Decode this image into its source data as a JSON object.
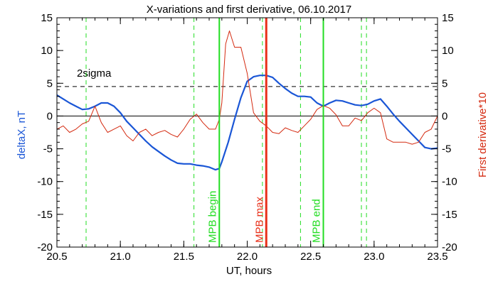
{
  "chart_data": {
    "type": "line",
    "title": "X-variations and first derivative, 06.10.2017",
    "xlabel": "UT, hours",
    "ylabel_left": "deltaX, nT",
    "ylabel_right": "First derivative*10",
    "xlim": [
      20.5,
      23.5
    ],
    "ylim": [
      -20,
      15
    ],
    "x_ticks": [
      "20.5",
      "21.0",
      "21.5",
      "22.0",
      "22.5",
      "23.0",
      "23.5"
    ],
    "x_tick_values": [
      20.5,
      21.0,
      21.5,
      22.0,
      22.5,
      23.0,
      23.5
    ],
    "y_ticks": [
      "15",
      "10",
      "5",
      "0",
      "-5",
      "-10",
      "-15",
      "-20"
    ],
    "y_tick_values": [
      15,
      10,
      5,
      0,
      -5,
      -10,
      -15,
      -20
    ],
    "grid": false,
    "colors": {
      "deltaX": "#1a56d6",
      "derivative": "#d42a10",
      "mpb_markers": "#22dd22",
      "mpb_max": "#e8301a",
      "reference": "#000000"
    },
    "zero_line": 0,
    "sigma_line": {
      "label": "2sigma",
      "value": 4.5
    },
    "series": [
      {
        "name": "deltaX, nT",
        "x": [
          20.5,
          20.55,
          20.6,
          20.65,
          20.7,
          20.75,
          20.8,
          20.85,
          20.9,
          20.95,
          21.0,
          21.05,
          21.1,
          21.15,
          21.2,
          21.25,
          21.3,
          21.35,
          21.4,
          21.45,
          21.5,
          21.55,
          21.6,
          21.65,
          21.7,
          21.75,
          21.78,
          21.8,
          21.85,
          21.9,
          21.95,
          22.0,
          22.05,
          22.1,
          22.15,
          22.2,
          22.25,
          22.3,
          22.35,
          22.4,
          22.45,
          22.5,
          22.55,
          22.6,
          22.65,
          22.7,
          22.75,
          22.8,
          22.85,
          22.9,
          22.95,
          23.0,
          23.05,
          23.1,
          23.15,
          23.2,
          23.25,
          23.3,
          23.35,
          23.4,
          23.45,
          23.5
        ],
        "values": [
          3.2,
          2.6,
          2.0,
          1.5,
          1.0,
          1.1,
          1.5,
          2.0,
          2.0,
          1.5,
          0.5,
          -0.8,
          -1.8,
          -2.8,
          -3.8,
          -4.7,
          -5.4,
          -6.1,
          -6.7,
          -7.2,
          -7.3,
          -7.3,
          -7.5,
          -7.6,
          -7.8,
          -8.2,
          -8.0,
          -7.0,
          -4.0,
          -0.5,
          2.8,
          5.3,
          6.0,
          6.2,
          6.2,
          5.9,
          5.0,
          4.2,
          3.5,
          3.0,
          3.0,
          2.9,
          2.0,
          1.5,
          2.0,
          2.4,
          2.3,
          2.0,
          1.7,
          1.6,
          1.8,
          2.3,
          2.6,
          1.5,
          0.3,
          -0.8,
          -1.8,
          -2.8,
          -3.8,
          -4.8,
          -5.0,
          -4.9
        ]
      },
      {
        "name": "First derivative*10",
        "x": [
          20.5,
          20.55,
          20.6,
          20.65,
          20.7,
          20.75,
          20.8,
          20.85,
          20.9,
          20.95,
          21.0,
          21.05,
          21.1,
          21.15,
          21.2,
          21.25,
          21.3,
          21.35,
          21.4,
          21.45,
          21.5,
          21.55,
          21.6,
          21.65,
          21.7,
          21.75,
          21.78,
          21.8,
          21.83,
          21.86,
          21.9,
          21.95,
          22.0,
          22.05,
          22.1,
          22.15,
          22.2,
          22.25,
          22.3,
          22.35,
          22.4,
          22.45,
          22.5,
          22.55,
          22.6,
          22.65,
          22.7,
          22.75,
          22.8,
          22.85,
          22.9,
          22.95,
          23.0,
          23.05,
          23.1,
          23.15,
          23.2,
          23.25,
          23.3,
          23.35,
          23.4,
          23.45,
          23.5
        ],
        "values": [
          -2.0,
          -1.5,
          -2.5,
          -2.0,
          -1.2,
          -0.8,
          1.5,
          -1.0,
          -2.5,
          -2.0,
          -1.5,
          -3.0,
          -3.8,
          -2.5,
          -2.0,
          -3.0,
          -2.5,
          -2.2,
          -2.8,
          -3.2,
          -2.0,
          -0.5,
          0.3,
          -1.0,
          -2.0,
          -2.0,
          -0.5,
          2.0,
          11.0,
          13.0,
          10.5,
          10.5,
          6.5,
          0.5,
          -0.8,
          -1.5,
          -2.5,
          -2.7,
          -1.8,
          -2.2,
          -2.5,
          -1.5,
          -0.5,
          1.0,
          1.6,
          1.2,
          0.2,
          -1.5,
          -1.5,
          -0.3,
          -0.7,
          0.5,
          1.2,
          0.5,
          -3.5,
          -4.0,
          -4.0,
          -4.0,
          -4.3,
          -4.0,
          -2.5,
          -2.0,
          0.0
        ]
      }
    ],
    "vertical_markers": [
      {
        "label": "MPB begin",
        "x": 21.78,
        "style": "solid",
        "color": "#22dd22"
      },
      {
        "label": "MPB max",
        "x": 22.15,
        "style": "solid",
        "color": "#e8301a"
      },
      {
        "label": "MPB end",
        "x": 22.6,
        "style": "solid",
        "color": "#22dd22"
      }
    ],
    "dashed_markers": [
      20.73,
      21.58,
      22.12,
      22.42,
      22.9,
      22.94
    ],
    "minor_ticks": {
      "x_step": 0.1,
      "y_step": 1
    }
  }
}
